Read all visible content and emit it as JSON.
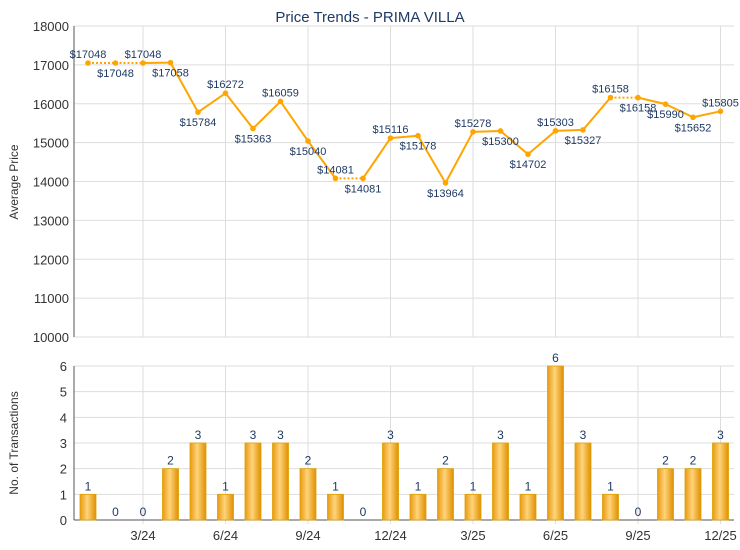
{
  "chart_data": [
    {
      "type": "line",
      "title": "Price Trends - PRIMA VILLA",
      "ylabel": "Average Price",
      "ylim": [
        10000,
        18000
      ],
      "yticks": [
        10000,
        11000,
        12000,
        13000,
        14000,
        15000,
        16000,
        17000,
        18000
      ],
      "x": [
        "1/24",
        "2/24",
        "3/24",
        "4/24",
        "5/24",
        "6/24",
        "7/24",
        "8/24",
        "9/24",
        "10/24",
        "11/24",
        "12/24",
        "1/25",
        "2/25",
        "3/25",
        "4/25",
        "5/25",
        "6/25",
        "7/25",
        "8/25",
        "9/25",
        "10/25",
        "11/25",
        "12/25"
      ],
      "values": [
        17048,
        17048,
        17048,
        17058,
        15784,
        16272,
        15363,
        16059,
        15040,
        14081,
        14081,
        15116,
        15178,
        13964,
        15278,
        15300,
        14702,
        15303,
        15327,
        16158,
        16158,
        15990,
        15652,
        15805
      ],
      "labels": [
        "$17048",
        "$17048",
        "$17048",
        "$17058",
        "$15784",
        "$16272",
        "$15363",
        "$16059",
        "$15040",
        "$14081",
        "$14081",
        "$15116",
        "$15178",
        "$13964",
        "$15278",
        "$15300",
        "$14702",
        "$15303",
        "$15327",
        "$16158",
        "$16158",
        "$15990",
        "$15652",
        "$15805"
      ],
      "color": "#FFA500"
    },
    {
      "type": "bar",
      "ylabel": "No. of Transactions",
      "ylim": [
        0,
        6
      ],
      "yticks": [
        0,
        1,
        2,
        3,
        4,
        5,
        6
      ],
      "xticklabels": [
        "3/24",
        "6/24",
        "9/24",
        "12/24",
        "3/25",
        "6/25",
        "9/25",
        "12/25"
      ],
      "values": [
        1,
        0,
        0,
        2,
        3,
        1,
        3,
        3,
        2,
        1,
        0,
        3,
        1,
        2,
        1,
        3,
        1,
        6,
        3,
        1,
        0,
        2,
        2,
        3
      ],
      "color": "#F0A820"
    }
  ]
}
